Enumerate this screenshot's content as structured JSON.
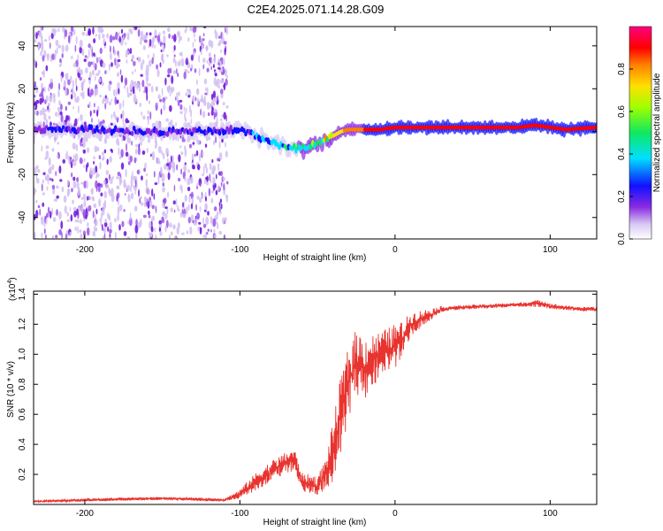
{
  "title": "C2E4.2025.071.14.28.G09",
  "colors": {
    "snr_line": "#e8342f",
    "axis": "#000000"
  },
  "chart_data": [
    {
      "type": "heatmap",
      "xlabel": "Height of straight line (km)",
      "ylabel": "Frequency (Hz)",
      "xlim": [
        -233,
        130
      ],
      "ylim": [
        -50,
        49
      ],
      "x_ticks": [
        {
          "value": -200,
          "label": "-200"
        },
        {
          "value": -100,
          "label": "-100"
        },
        {
          "value": 0,
          "label": "0"
        },
        {
          "value": 100,
          "label": "100"
        }
      ],
      "y_ticks": [
        {
          "value": -40,
          "label": "-40"
        },
        {
          "value": -20,
          "label": "-20"
        },
        {
          "value": 0,
          "label": "0"
        },
        {
          "value": 20,
          "label": "20"
        },
        {
          "value": 40,
          "label": "40"
        }
      ],
      "colorbar": {
        "label": "Normalized spectral amplitude",
        "range": [
          0,
          1
        ],
        "ticks": [
          {
            "value": 0.0,
            "label": "0.0"
          },
          {
            "value": 0.2,
            "label": "0.2"
          },
          {
            "value": 0.4,
            "label": "0.4"
          },
          {
            "value": 0.6,
            "label": "0.6"
          },
          {
            "value": 0.8,
            "label": "0.8"
          }
        ]
      },
      "ridge": {
        "x": [
          -233,
          -200,
          -150,
          -120,
          -100,
          -90,
          -80,
          -70,
          -60,
          -50,
          -45,
          -40,
          -35,
          -30,
          -20,
          -10,
          0,
          20,
          50,
          80,
          90,
          100,
          110,
          130
        ],
        "freq": [
          1,
          1,
          0,
          0,
          1,
          -2,
          -5,
          -7,
          -8,
          -6,
          -4,
          -2,
          0,
          1,
          1,
          1,
          2,
          2,
          2,
          2,
          3,
          2,
          1,
          2
        ],
        "amplitude": [
          0.3,
          0.3,
          0.3,
          0.3,
          0.35,
          0.4,
          0.45,
          0.5,
          0.55,
          0.6,
          0.7,
          0.75,
          0.8,
          0.85,
          0.9,
          0.9,
          0.9,
          0.95,
          0.95,
          0.95,
          0.95,
          0.9,
          0.9,
          0.9
        ]
      }
    },
    {
      "type": "line",
      "xlabel": "Height of straight line (km)",
      "ylabel": "SNR (10 * v/v)",
      "y_multiplier": "(x10",
      "y_multiplier_exp": "4",
      "xlim": [
        -233,
        130
      ],
      "ylim": [
        0,
        14200
      ],
      "x_ticks": [
        {
          "value": -200,
          "label": "-200"
        },
        {
          "value": -100,
          "label": "-100"
        },
        {
          "value": 0,
          "label": "0"
        },
        {
          "value": 100,
          "label": "100"
        }
      ],
      "y_ticks": [
        {
          "value": 2000,
          "label": "0.2"
        },
        {
          "value": 4000,
          "label": "0.4"
        },
        {
          "value": 6000,
          "label": "0.6"
        },
        {
          "value": 8000,
          "label": "0.8"
        },
        {
          "value": 10000,
          "label": "1.0"
        },
        {
          "value": 12000,
          "label": "1.2"
        },
        {
          "value": 14000,
          "label": "1.4"
        }
      ],
      "series": [
        {
          "x": [
            -233,
            -200,
            -150,
            -110,
            -100,
            -90,
            -80,
            -70,
            -65,
            -60,
            -50,
            -45,
            -40,
            -35,
            -30,
            -25,
            -20,
            -10,
            0,
            5,
            10,
            20,
            30,
            40,
            60,
            80,
            95,
            100,
            110,
            120,
            130
          ],
          "y": [
            200,
            300,
            400,
            300,
            700,
            1500,
            2200,
            2800,
            3000,
            1500,
            1200,
            2000,
            3500,
            6000,
            8000,
            9500,
            9000,
            10000,
            10500,
            11000,
            12000,
            12500,
            13000,
            13100,
            13200,
            13300,
            13400,
            13200,
            13100,
            13000,
            13000
          ],
          "noise": [
            50,
            100,
            100,
            100,
            300,
            600,
            700,
            700,
            800,
            600,
            700,
            1000,
            2000,
            2500,
            2500,
            2200,
            2200,
            1500,
            1500,
            1200,
            800,
            500,
            200,
            150,
            150,
            150,
            250,
            200,
            150,
            150,
            150
          ]
        }
      ]
    }
  ]
}
